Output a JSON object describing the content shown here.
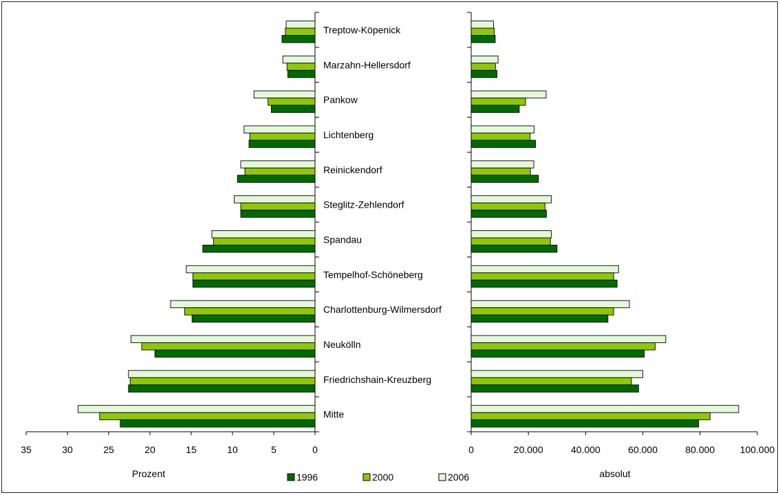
{
  "chart_data": [
    {
      "type": "bar",
      "orientation": "horizontal-mirrored",
      "categories": [
        "Treptow-Köpenick",
        "Marzahn-Hellersdorf",
        "Pankow",
        "Lichtenberg",
        "Reinickendorf",
        "Steglitz-Zehlendorf",
        "Spandau",
        "Tempelhof-Schöneberg",
        "Charlottenburg-Wilmersdorf",
        "Neukölln",
        "Friedrichshain-Kreuzberg",
        "Mitte"
      ],
      "series": [
        {
          "name": "1996",
          "values": [
            4.0,
            3.3,
            5.3,
            8.0,
            9.4,
            9.0,
            13.6,
            14.8,
            14.9,
            19.4,
            22.6,
            23.6
          ]
        },
        {
          "name": "2000",
          "values": [
            3.6,
            3.4,
            5.7,
            7.9,
            8.5,
            9.0,
            12.3,
            14.8,
            15.8,
            21.0,
            22.4,
            26.1
          ]
        },
        {
          "name": "2006",
          "values": [
            3.5,
            3.9,
            7.4,
            8.6,
            9.0,
            9.8,
            12.5,
            15.6,
            17.5,
            22.3,
            22.6,
            28.7
          ]
        }
      ],
      "xlabel": "Prozent",
      "xlim": [
        0,
        35
      ],
      "ticks": [
        "35",
        "30",
        "25",
        "20",
        "15",
        "10",
        "5",
        "0"
      ]
    },
    {
      "type": "bar",
      "orientation": "horizontal",
      "categories": [
        "Treptow-Köpenick",
        "Marzahn-Hellersdorf",
        "Pankow",
        "Lichtenberg",
        "Reinickendorf",
        "Steglitz-Zehlendorf",
        "Spandau",
        "Tempelhof-Schöneberg",
        "Charlottenburg-Wilmersdorf",
        "Neukölln",
        "Friedrichshain-Kreuzberg",
        "Mitte"
      ],
      "series": [
        {
          "name": "1996",
          "values": [
            8400,
            9000,
            16800,
            22500,
            23500,
            26300,
            30000,
            51000,
            47800,
            60500,
            58500,
            79500
          ]
        },
        {
          "name": "2000",
          "values": [
            8100,
            8500,
            19000,
            20600,
            20700,
            25800,
            27700,
            49800,
            49800,
            64300,
            56000,
            83500
          ]
        },
        {
          "name": "2006",
          "values": [
            7800,
            9400,
            26200,
            22000,
            21900,
            28000,
            28000,
            51500,
            55300,
            68000,
            60000,
            93500
          ]
        }
      ],
      "xlabel": "absolut",
      "xlim": [
        0,
        100000
      ],
      "ticks": [
        "0",
        "20.000",
        "40.000",
        "60.000",
        "80.000",
        "100.000"
      ]
    }
  ],
  "legend": [
    {
      "label": "1996",
      "color": "#006a00"
    },
    {
      "label": "2000",
      "color": "#8fc800"
    },
    {
      "label": "2006",
      "color": "#e3f8da"
    }
  ]
}
